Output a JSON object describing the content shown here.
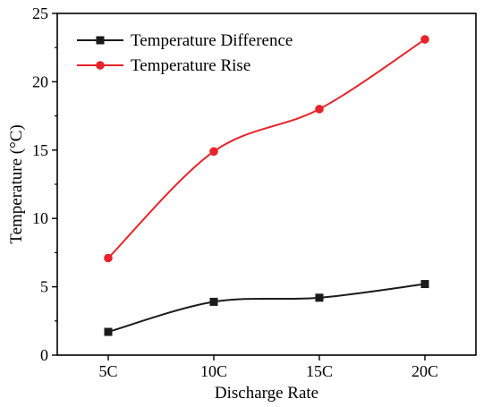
{
  "chart_data": {
    "type": "line",
    "title": "",
    "xlabel": "Discharge Rate",
    "ylabel": "Temperature (°C)",
    "categories": [
      "5C",
      "10C",
      "15C",
      "20C"
    ],
    "ylim": [
      0,
      25
    ],
    "yticks": [
      0,
      5,
      10,
      15,
      20,
      25
    ],
    "grid": false,
    "legend_position": "top-left",
    "series": [
      {
        "name": "Temperature Difference",
        "values": [
          1.7,
          3.9,
          4.2,
          5.2
        ],
        "color": "#1a1a1a",
        "marker": "square",
        "line": "smooth"
      },
      {
        "name": "Temperature Rise",
        "values": [
          7.1,
          14.9,
          18.0,
          23.1
        ],
        "color": "#e8222a",
        "marker": "circle",
        "line": "smooth"
      }
    ]
  }
}
